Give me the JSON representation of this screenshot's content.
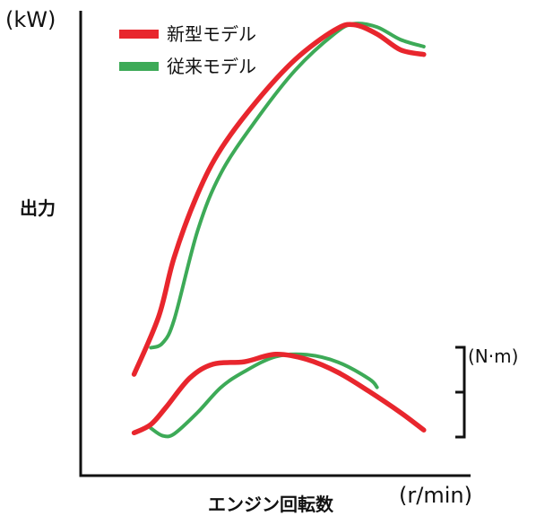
{
  "chart_data": {
    "type": "line",
    "ylabel": "出力",
    "xlabel": "エンジン回転数",
    "y_unit": "(kW)",
    "x_unit": "(r/min)",
    "torque_unit": "(N·m)",
    "grid": false,
    "legend_position": "top-left",
    "x_domain": [
      0,
      100
    ],
    "y_domain": [
      0,
      100
    ],
    "colors": {
      "new": "#e8262d",
      "old": "#3daa57",
      "axis": "#111111"
    },
    "series": [
      {
        "name": "新型モデル",
        "curve": "power",
        "color": "#e8262d",
        "x": [
          13.7,
          20.0,
          24.0,
          30.0,
          36.0,
          45.0,
          55.0,
          65.0,
          70.0,
          76.0,
          82.0,
          88.0
        ],
        "y": [
          21.8,
          34.2,
          47.0,
          60.6,
          70.3,
          80.4,
          89.5,
          95.8,
          97.0,
          95.0,
          91.6,
          90.6
        ]
      },
      {
        "name": "従来モデル",
        "curve": "power",
        "color": "#3daa57",
        "x": [
          18.0,
          21.0,
          24.0,
          30.0,
          36.0,
          45.0,
          55.0,
          65.0,
          70.0,
          76.0,
          82.0,
          88.0
        ],
        "y": [
          27.5,
          28.5,
          33.6,
          52.7,
          65.1,
          76.5,
          87.2,
          95.0,
          97.2,
          96.5,
          93.8,
          92.3
        ]
      },
      {
        "name": "新型モデル",
        "curve": "torque",
        "color": "#e8262d",
        "x": [
          13.7,
          18.0,
          22.0,
          28.0,
          34.0,
          42.0,
          50.0,
          58.0,
          66.0,
          74.0,
          82.0,
          88.0
        ],
        "y": [
          9.2,
          11.0,
          14.8,
          21.0,
          24.0,
          24.5,
          26.1,
          25.0,
          22.2,
          18.1,
          13.6,
          9.8
        ]
      },
      {
        "name": "従来モデル",
        "curve": "torque",
        "color": "#3daa57",
        "x": [
          18.0,
          21.0,
          24.0,
          30.0,
          36.0,
          42.0,
          50.0,
          58.0,
          66.0,
          74.0,
          76.0
        ],
        "y": [
          10.2,
          8.6,
          9.0,
          13.6,
          19.0,
          22.4,
          25.6,
          26.0,
          24.4,
          20.8,
          19.0
        ]
      }
    ]
  }
}
